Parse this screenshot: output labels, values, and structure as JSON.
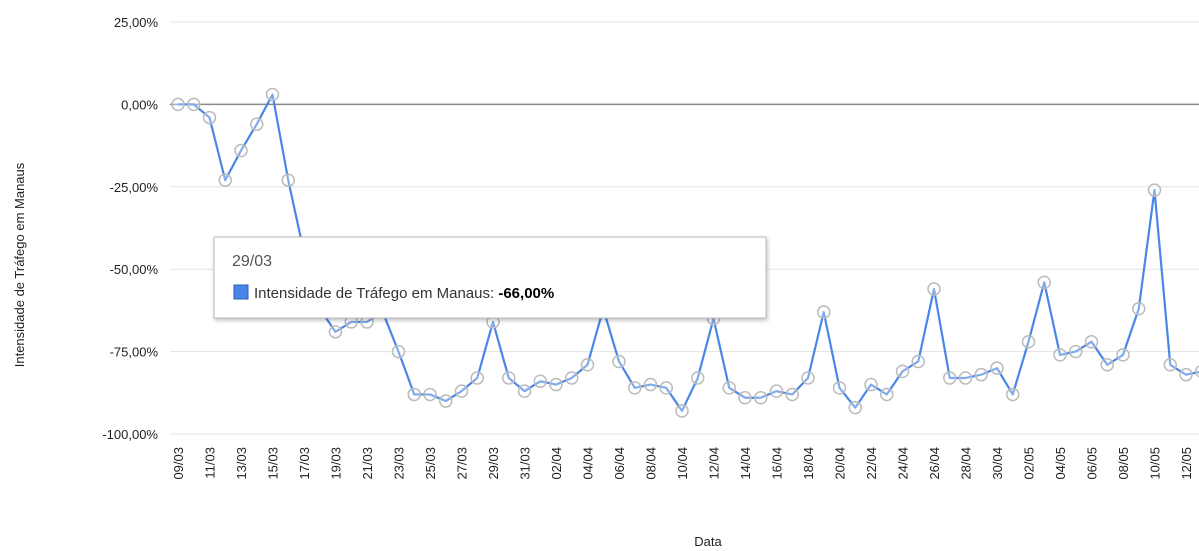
{
  "chart_data": {
    "type": "line",
    "x_label": "Data",
    "y_label": "Intensidade de Tráfego em Manaus",
    "categories": [
      "09/03",
      null,
      "11/03",
      null,
      "13/03",
      null,
      "15/03",
      null,
      "17/03",
      null,
      "19/03",
      null,
      "21/03",
      null,
      "23/03",
      null,
      "25/03",
      null,
      "27/03",
      null,
      "29/03",
      null,
      "31/03",
      null,
      "02/04",
      null,
      "04/04",
      null,
      "06/04",
      null,
      "08/04",
      null,
      "10/04",
      null,
      "12/04",
      null,
      "14/04",
      null,
      "16/04",
      null,
      "18/04",
      null,
      "20/04",
      null,
      "22/04",
      null,
      "24/04",
      null,
      "26/04",
      null,
      "28/04",
      null,
      "30/04",
      null,
      "02/05",
      null,
      "04/05",
      null,
      "06/05",
      null,
      "08/05",
      null,
      "10/05",
      null,
      "12/05",
      null
    ],
    "series": [
      {
        "name": "Intensidade de Tráfego em Manaus",
        "color": "#4a86e8",
        "values": [
          0,
          0,
          -4,
          -23,
          -14,
          -6,
          3,
          -23,
          -45,
          -62,
          -69,
          -66,
          -66,
          -63,
          -75,
          -88,
          -88,
          -90,
          -87,
          -83,
          -66,
          -83,
          -87,
          -84,
          -85,
          -83,
          -79,
          -62,
          -78,
          -86,
          -85,
          -86,
          -93,
          -83,
          -65,
          -86,
          -89,
          -89,
          -87,
          -88,
          -83,
          -63,
          -86,
          -92,
          -85,
          -88,
          -81,
          -78,
          -56,
          -83,
          -83,
          -82,
          -80,
          -88,
          -72,
          -54,
          -76,
          -75,
          -72,
          -79,
          -76,
          -62,
          -26,
          -79,
          -82,
          -81
        ]
      }
    ],
    "ylim": [
      -100,
      25
    ],
    "yticks": [
      {
        "value": -100,
        "label": "-100,00%"
      },
      {
        "value": -75,
        "label": "-75,00%"
      },
      {
        "value": -50,
        "label": "-50,00%"
      },
      {
        "value": -25,
        "label": "-25,00%"
      },
      {
        "value": 0,
        "label": "0,00%"
      },
      {
        "value": 25,
        "label": "25,00%"
      }
    ],
    "grid": true,
    "tooltip": {
      "category": "29/03",
      "value_label": "-66,00%"
    }
  }
}
